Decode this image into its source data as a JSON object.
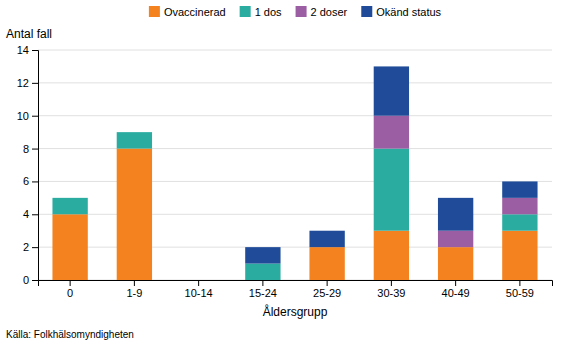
{
  "chart_data": {
    "type": "bar",
    "stacked": true,
    "categories": [
      "0",
      "1-9",
      "10-14",
      "15-24",
      "25-29",
      "30-39",
      "40-49",
      "50-59"
    ],
    "series": [
      {
        "name": "Ovaccinerad",
        "color": "#F4821E",
        "values": [
          4,
          8,
          0,
          0,
          2,
          3,
          2,
          3
        ]
      },
      {
        "name": "1 dos",
        "color": "#2AACA0",
        "values": [
          1,
          1,
          0,
          1,
          0,
          5,
          0,
          1
        ]
      },
      {
        "name": "2 doser",
        "color": "#9B5EA2",
        "values": [
          0,
          0,
          0,
          0,
          0,
          2,
          1,
          1
        ]
      },
      {
        "name": "Okänd status",
        "color": "#1F4B99",
        "values": [
          0,
          0,
          0,
          1,
          1,
          3,
          2,
          1
        ]
      }
    ],
    "xlabel": "Åldersgrupp",
    "ylabel": "Antal fall",
    "ylim": [
      0,
      14
    ],
    "yticks": [
      0,
      2,
      4,
      6,
      8,
      10,
      12,
      14
    ],
    "grid": true,
    "legend": "top",
    "annotations": [
      "Källa: Folkhälsomyndigheten"
    ]
  }
}
